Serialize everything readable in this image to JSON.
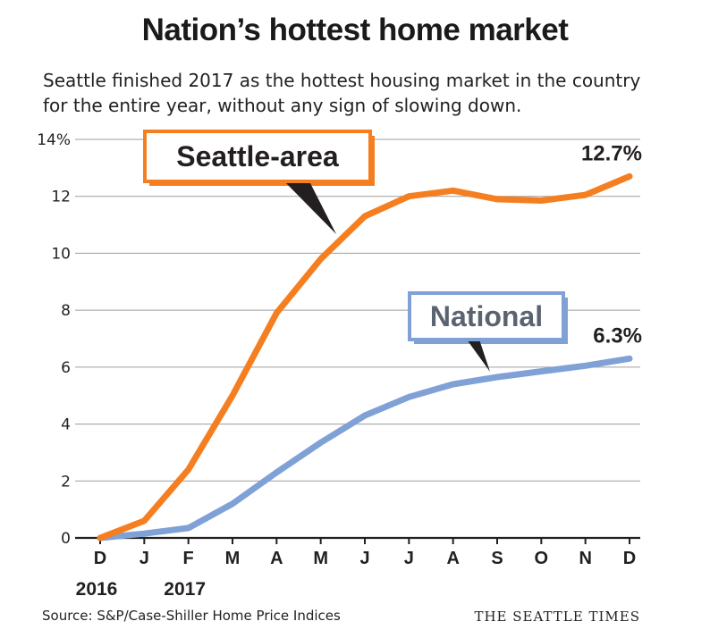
{
  "header": {
    "title": "Nation’s hottest home market",
    "subtitle": "Seattle finished 2017 as the hottest housing market in the country for the entire year, without any sign of slowing down."
  },
  "footer": {
    "source": "Source: S&P/Case-Shiller Home Price Indices",
    "brand": "THE SEATTLE TIMES"
  },
  "colors": {
    "seattle": "#f57f20",
    "national": "#7fa1d6",
    "national_label": "#5a6470",
    "grid": "#9d9d9d",
    "axis": "#231f20"
  },
  "chart_data": {
    "type": "line",
    "categories": [
      "D",
      "J",
      "F",
      "M",
      "A",
      "M",
      "J",
      "J",
      "A",
      "S",
      "O",
      "N",
      "D"
    ],
    "year_labels": [
      {
        "index": 0,
        "text": "2016"
      },
      {
        "index": 2,
        "text": "2017"
      }
    ],
    "ylim": [
      0,
      14
    ],
    "yticks": [
      0,
      2,
      4,
      6,
      8,
      10,
      12,
      14
    ],
    "ytick_labels": [
      "0",
      "2",
      "4",
      "6",
      "8",
      "10",
      "12",
      "14%"
    ],
    "grid": true,
    "series": [
      {
        "name": "Seattle-area",
        "key": "seattle",
        "values": [
          0.0,
          0.6,
          2.4,
          5.0,
          7.9,
          9.8,
          11.3,
          12.0,
          12.2,
          11.9,
          11.85,
          12.05,
          12.7
        ],
        "end_label": "12.7%"
      },
      {
        "name": "National",
        "key": "national",
        "values": [
          0.0,
          0.15,
          0.35,
          1.2,
          2.3,
          3.35,
          4.3,
          4.95,
          5.4,
          5.65,
          5.85,
          6.05,
          6.3
        ],
        "end_label": "6.3%"
      }
    ]
  }
}
